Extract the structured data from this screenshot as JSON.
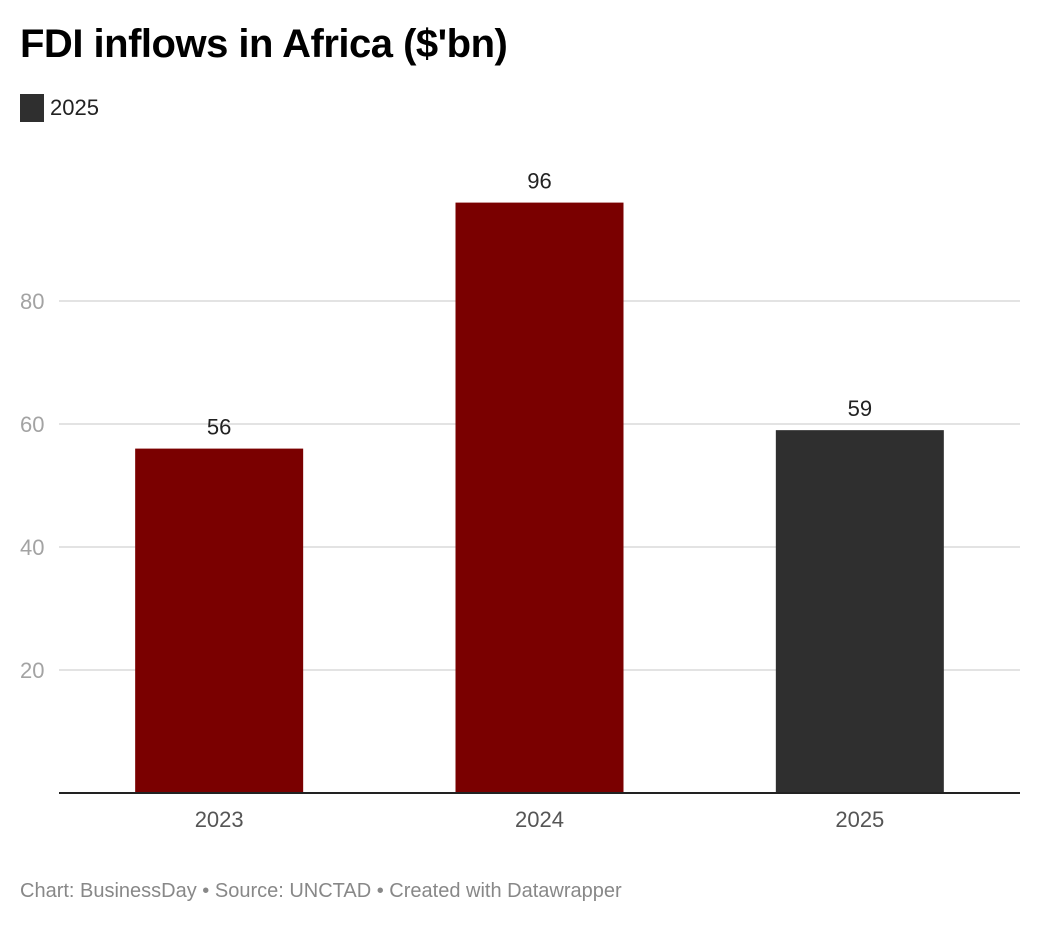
{
  "chart_data": {
    "type": "bar",
    "title": "FDI inflows in Africa ($'bn)",
    "categories": [
      "2023",
      "2024",
      "2025"
    ],
    "values": [
      56,
      96,
      59
    ],
    "colors": [
      "#7a0000",
      "#7a0000",
      "#2f2f2f"
    ],
    "legend": [
      {
        "label": "2025",
        "color": "#2f2f2f"
      }
    ],
    "legend_position": "top-left",
    "yticks": [
      20,
      40,
      60,
      80
    ],
    "ylim": [
      0,
      96
    ],
    "grid": true,
    "xlabel": "",
    "ylabel": ""
  },
  "footer": "Chart: BusinessDay • Source: UNCTAD • Created with Datawrapper"
}
